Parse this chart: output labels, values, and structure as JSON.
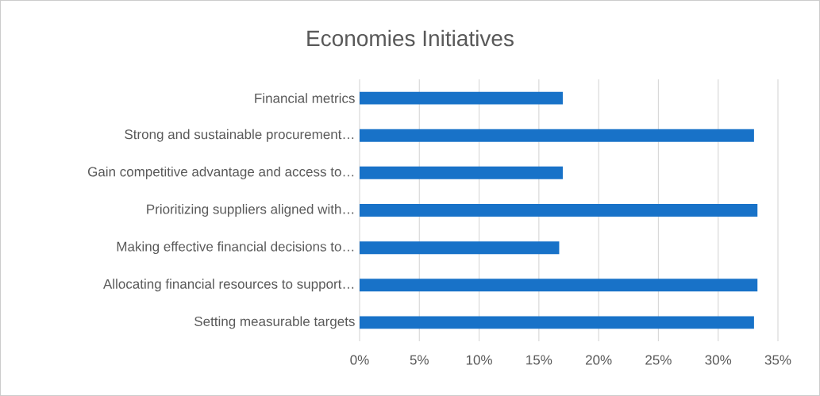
{
  "chart_data": {
    "type": "bar",
    "orientation": "horizontal",
    "title": "Economies Initiatives",
    "categories": [
      "Financial metrics",
      "Strong and sustainable procurement…",
      "Gain competitive advantage and access to…",
      "Prioritizing suppliers aligned with…",
      "Making effective financial decisions to…",
      "Allocating financial resources to support…",
      "Setting measurable targets"
    ],
    "values": [
      17.0,
      33.0,
      17.0,
      33.3,
      16.7,
      33.3,
      33.0
    ],
    "color": "#1872c8",
    "xlim": [
      0,
      35
    ],
    "xticks": [
      {
        "value": 0,
        "label": "0%"
      },
      {
        "value": 5,
        "label": "5%"
      },
      {
        "value": 10,
        "label": "10%"
      },
      {
        "value": 15,
        "label": "15%"
      },
      {
        "value": 20,
        "label": "20%"
      },
      {
        "value": 25,
        "label": "25%"
      },
      {
        "value": 30,
        "label": "30%"
      },
      {
        "value": 35,
        "label": "35%"
      }
    ],
    "grid": "x"
  }
}
